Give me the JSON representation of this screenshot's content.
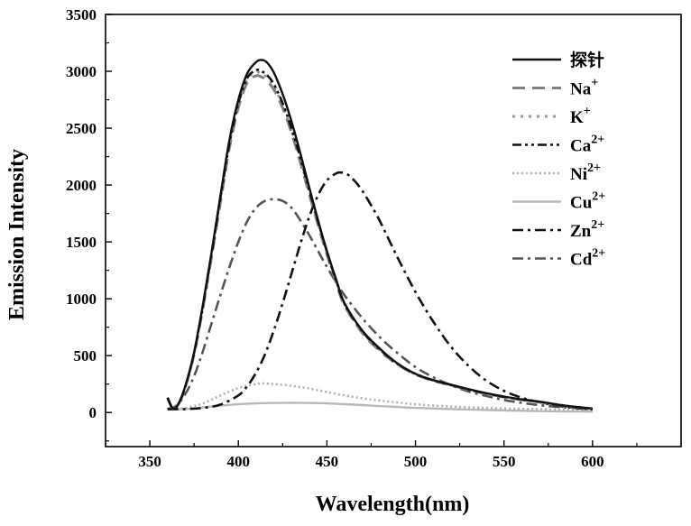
{
  "chart_data": {
    "type": "line",
    "title": "",
    "xlabel": "Wavelength(nm)",
    "ylabel": "Emission Intensity",
    "xlim": [
      325,
      650
    ],
    "ylim": [
      -300,
      3500
    ],
    "x_ticks": [
      350,
      400,
      450,
      500,
      550,
      600
    ],
    "y_ticks": [
      0,
      500,
      1000,
      1500,
      2000,
      2500,
      3000,
      3500
    ],
    "grid": false,
    "legend_position": "top-right",
    "series": [
      {
        "name": "探针",
        "label_html": "探针",
        "color": "#111111",
        "style": "solid",
        "x": [
          360,
          363,
          366,
          370,
          375,
          380,
          385,
          390,
          395,
          400,
          405,
          410,
          413,
          416,
          420,
          425,
          430,
          435,
          440,
          445,
          450,
          455,
          460,
          470,
          480,
          490,
          500,
          510,
          520,
          530,
          540,
          550,
          560,
          570,
          580,
          590,
          600
        ],
        "y": [
          130,
          35,
          70,
          230,
          530,
          950,
          1420,
          1920,
          2400,
          2750,
          2980,
          3080,
          3100,
          3080,
          2990,
          2800,
          2560,
          2280,
          1980,
          1690,
          1420,
          1180,
          960,
          720,
          560,
          430,
          340,
          285,
          245,
          205,
          170,
          140,
          115,
          95,
          70,
          50,
          35
        ]
      },
      {
        "name": "Na+",
        "label_base": "Na",
        "label_sup": "+",
        "color": "#808080",
        "style": "dash",
        "x": [
          360,
          363,
          366,
          370,
          375,
          380,
          385,
          390,
          395,
          400,
          405,
          410,
          413,
          416,
          420,
          425,
          430,
          435,
          440,
          445,
          450,
          455,
          460,
          470,
          480,
          490,
          500,
          510,
          520,
          530,
          540,
          550,
          560,
          570,
          580,
          590,
          600
        ],
        "y": [
          130,
          35,
          70,
          220,
          510,
          920,
          1380,
          1860,
          2330,
          2680,
          2900,
          2960,
          2950,
          2920,
          2840,
          2680,
          2460,
          2200,
          1920,
          1650,
          1390,
          1150,
          940,
          700,
          540,
          420,
          335,
          280,
          240,
          200,
          165,
          135,
          112,
          92,
          68,
          48,
          33
        ]
      },
      {
        "name": "K+",
        "label_base": "K",
        "label_sup": "+",
        "color": "#9a9a9a",
        "style": "dot",
        "x": [
          360,
          363,
          366,
          370,
          375,
          380,
          385,
          390,
          395,
          400,
          405,
          410,
          413,
          416,
          420,
          425,
          430,
          435,
          440,
          445,
          450,
          455,
          460,
          470,
          480,
          490,
          500,
          510,
          520,
          530,
          540,
          550,
          560,
          570,
          580,
          590,
          600
        ],
        "y": [
          130,
          35,
          70,
          225,
          520,
          935,
          1400,
          1890,
          2360,
          2710,
          2930,
          2990,
          2980,
          2950,
          2870,
          2700,
          2480,
          2220,
          1940,
          1665,
          1405,
          1165,
          950,
          710,
          550,
          425,
          338,
          282,
          242,
          202,
          167,
          137,
          113,
          93,
          69,
          49,
          34
        ]
      },
      {
        "name": "Ca2+",
        "label_base": "Ca",
        "label_sup": "2+",
        "color": "#111111",
        "style": "dashdotdot",
        "x": [
          360,
          363,
          366,
          370,
          375,
          380,
          385,
          390,
          395,
          400,
          405,
          410,
          413,
          416,
          420,
          425,
          430,
          435,
          440,
          445,
          450,
          455,
          460,
          470,
          480,
          490,
          500,
          510,
          520,
          530,
          540,
          550,
          560,
          570,
          580,
          590,
          600
        ],
        "y": [
          130,
          35,
          70,
          225,
          525,
          940,
          1410,
          1900,
          2370,
          2720,
          2940,
          3010,
          3000,
          2970,
          2890,
          2720,
          2500,
          2240,
          1960,
          1680,
          1415,
          1170,
          955,
          715,
          553,
          427,
          340,
          283,
          243,
          203,
          168,
          138,
          114,
          94,
          69,
          49,
          34
        ]
      },
      {
        "name": "Ni2+",
        "label_base": "Ni",
        "label_sup": "2+",
        "color": "#b0b0b0",
        "style": "fine-dot",
        "x": [
          360,
          370,
          380,
          390,
          400,
          410,
          415,
          420,
          430,
          440,
          450,
          460,
          470,
          480,
          490,
          500,
          520,
          540,
          560,
          580,
          600
        ],
        "y": [
          30,
          40,
          80,
          150,
          215,
          250,
          255,
          250,
          235,
          210,
          180,
          150,
          125,
          105,
          88,
          72,
          52,
          40,
          32,
          28,
          25
        ]
      },
      {
        "name": "Cu2+",
        "label_base": "Cu",
        "label_sup": "2+",
        "color": "#b8b8b8",
        "style": "solid",
        "x": [
          360,
          370,
          380,
          390,
          400,
          410,
          420,
          430,
          440,
          450,
          460,
          470,
          480,
          490,
          500,
          520,
          540,
          560,
          580,
          600
        ],
        "y": [
          25,
          30,
          45,
          60,
          72,
          80,
          84,
          85,
          84,
          80,
          73,
          65,
          56,
          48,
          40,
          30,
          22,
          15,
          10,
          8
        ]
      },
      {
        "name": "Zn2+",
        "label_base": "Zn",
        "label_sup": "2+",
        "color": "#111111",
        "style": "dashdot",
        "x": [
          360,
          370,
          380,
          390,
          400,
          405,
          410,
          415,
          420,
          425,
          430,
          435,
          440,
          445,
          450,
          455,
          458,
          462,
          466,
          470,
          475,
          480,
          490,
          500,
          510,
          520,
          530,
          540,
          550,
          560,
          570,
          580,
          590,
          600
        ],
        "y": [
          30,
          30,
          40,
          70,
          150,
          230,
          350,
          510,
          720,
          960,
          1220,
          1480,
          1720,
          1910,
          2040,
          2100,
          2110,
          2090,
          2030,
          1950,
          1820,
          1680,
          1360,
          1060,
          800,
          580,
          410,
          280,
          190,
          130,
          90,
          60,
          40,
          28
        ]
      },
      {
        "name": "Cd2+",
        "label_base": "Cd",
        "label_sup": "2+",
        "color": "#555555",
        "style": "dashdot",
        "x": [
          360,
          365,
          370,
          375,
          380,
          385,
          390,
          395,
          400,
          405,
          410,
          415,
          420,
          425,
          430,
          435,
          440,
          445,
          450,
          455,
          460,
          470,
          480,
          490,
          500,
          510,
          520,
          530,
          540,
          550,
          560,
          570,
          580,
          590,
          600
        ],
        "y": [
          30,
          60,
          160,
          320,
          540,
          790,
          1040,
          1280,
          1500,
          1680,
          1800,
          1860,
          1875,
          1860,
          1800,
          1690,
          1560,
          1420,
          1280,
          1150,
          1030,
          830,
          660,
          520,
          400,
          310,
          240,
          185,
          145,
          110,
          85,
          65,
          50,
          40,
          30
        ]
      }
    ]
  }
}
